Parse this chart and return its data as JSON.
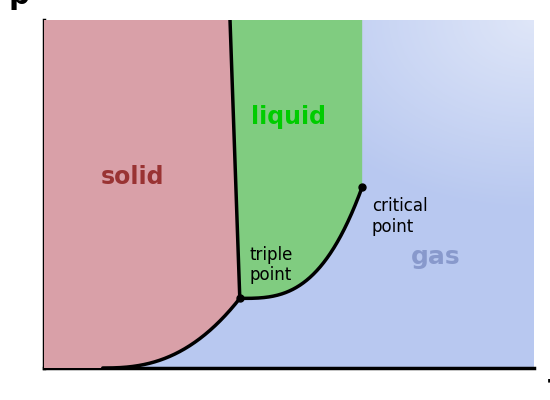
{
  "bg_color": "#ffffff",
  "solid_color": "#d9a0a8",
  "liquid_color": "#80cc80",
  "gas_color": "#b8c8f0",
  "line_color": "#000000",
  "solid_label": "solid",
  "solid_label_color": "#993333",
  "liquid_label": "liquid",
  "liquid_label_color": "#00cc00",
  "gas_label": "gas",
  "gas_label_color": "#8899cc",
  "triple_label": "triple\npoint",
  "critical_label": "critical\npoint",
  "axis_label_T": "T",
  "axis_label_p": "p",
  "label_fontsize": 17,
  "axis_fontsize": 21,
  "annotation_fontsize": 12
}
